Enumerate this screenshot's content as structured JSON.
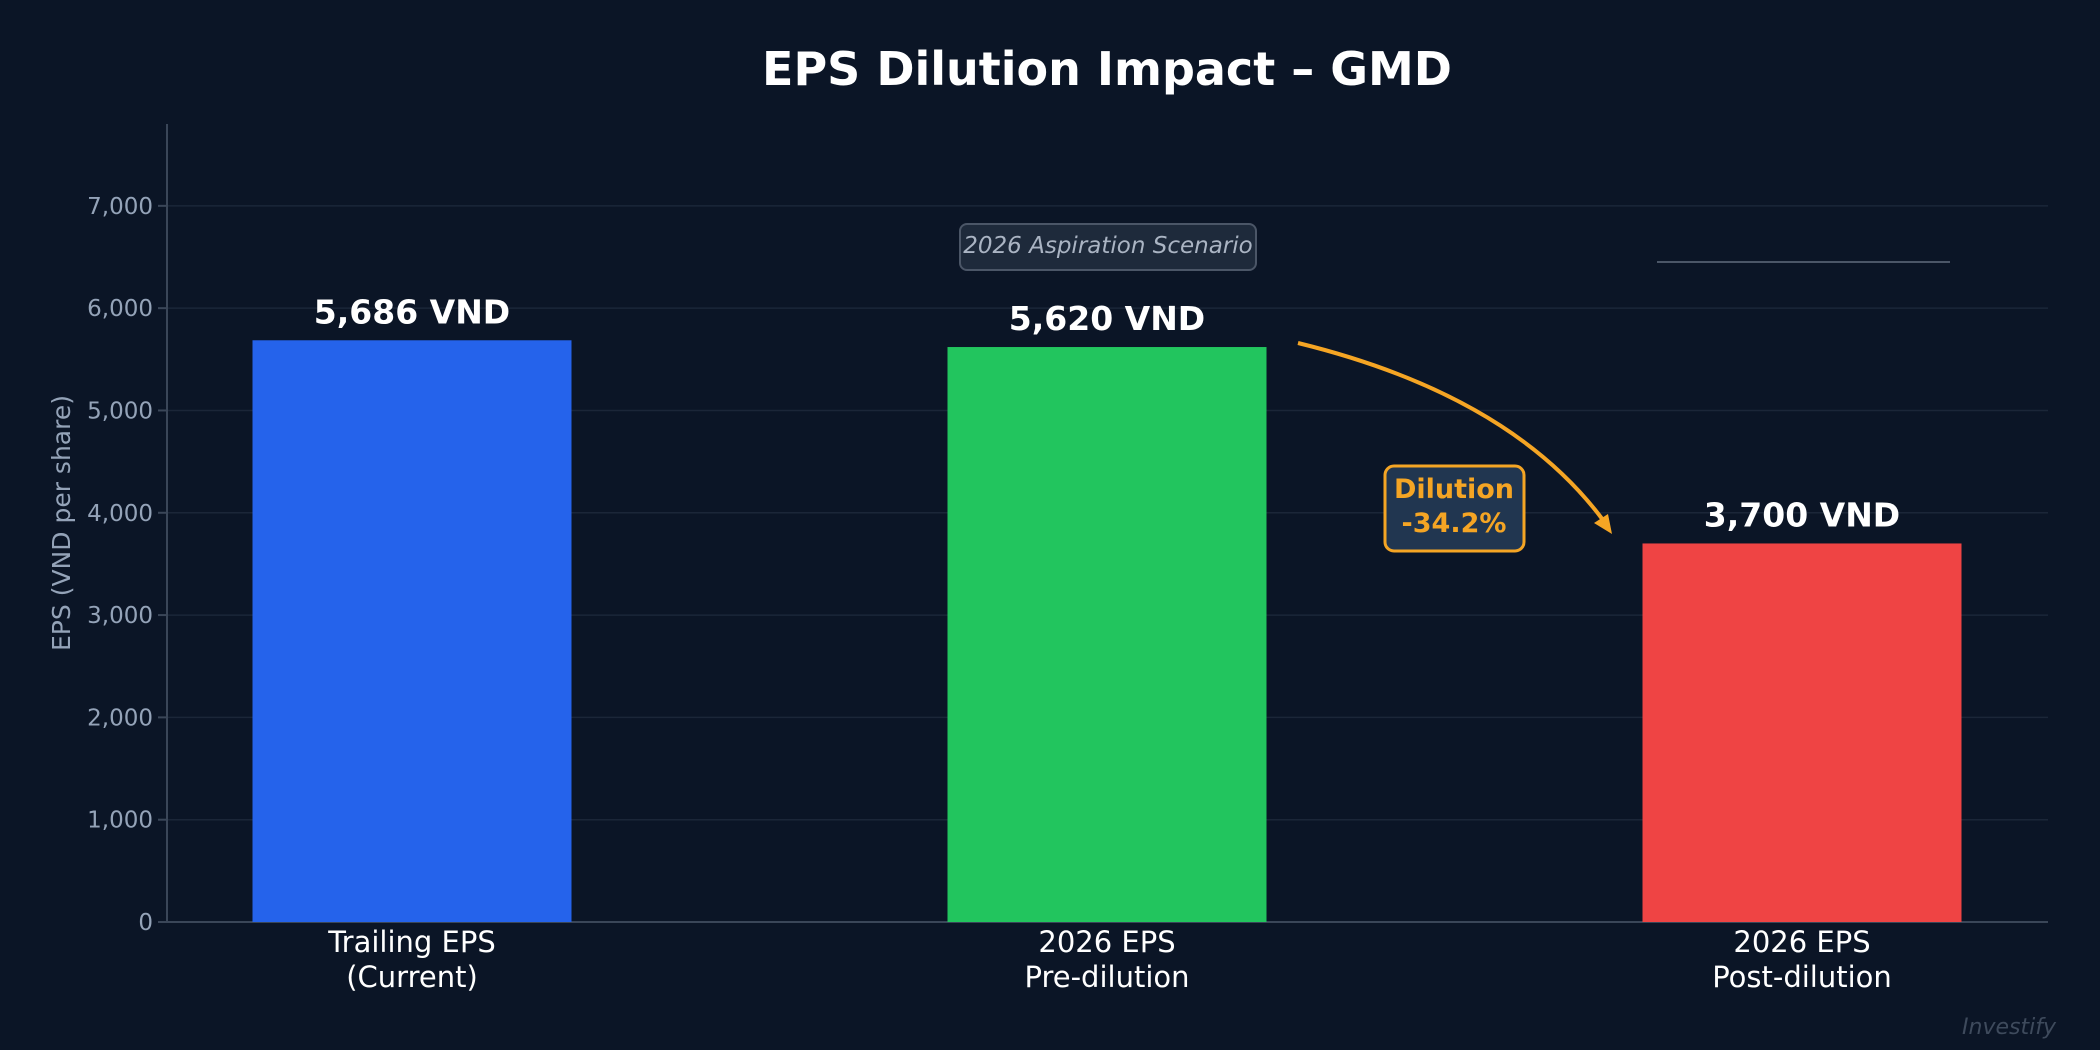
{
  "chart_data": {
    "type": "bar",
    "title": "EPS Dilution Impact – GMD",
    "ylabel": "EPS (VND per share)",
    "xlabel": "",
    "ylim": [
      0,
      7800
    ],
    "yticks": [
      0,
      1000,
      2000,
      3000,
      4000,
      5000,
      6000,
      7000
    ],
    "ytick_labels": [
      "0",
      "1,000",
      "2,000",
      "3,000",
      "4,000",
      "5,000",
      "6,000",
      "7,000"
    ],
    "grid": true,
    "categories": [
      [
        "Trailing EPS",
        "(Current)"
      ],
      [
        "2026 EPS",
        "Pre-dilution"
      ],
      [
        "2026 EPS",
        "Post-dilution"
      ]
    ],
    "values": [
      5686,
      5620,
      3700
    ],
    "value_labels": [
      "5,686 VND",
      "5,620 VND",
      "3,700 VND"
    ],
    "colors": [
      "#2563eb",
      "#22c55e",
      "#ef4444"
    ],
    "annotations": {
      "scenario": "2026 Aspiration Scenario",
      "dilution_title": "Dilution",
      "dilution_value": "-34.2%",
      "dilution_color": "#f5a524"
    },
    "watermark": "Investify"
  }
}
